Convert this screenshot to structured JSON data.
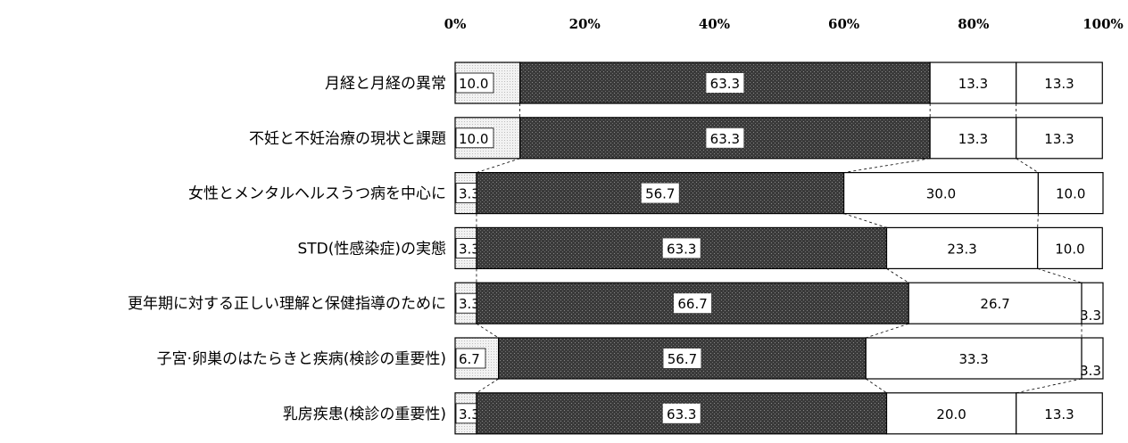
{
  "chart_data": {
    "type": "bar",
    "orientation": "horizontal",
    "stacked": true,
    "percent": true,
    "x_ticks": [
      "0%",
      "20%",
      "40%",
      "60%",
      "80%",
      "100%"
    ],
    "xlim": [
      0,
      100
    ],
    "categories": [
      "月経と月経の異常",
      "不妊と不妊治療の現状と課題",
      "女性とメンタルヘルスうつ病を中心に",
      "STD(性感染症)の実態",
      "更年期に対する正しい理解と保健指導のために",
      "子宮·卵巣のはたらきと疾病(検診の重要性)",
      "乳房疾患(検診の重要性)"
    ],
    "series": [
      {
        "values": [
          10.0,
          10.0,
          3.3,
          3.3,
          3.3,
          6.7,
          3.3
        ],
        "labels": [
          "10.0",
          "10.0",
          "3.3",
          "3.3",
          "3.3",
          "6.7",
          "3.3"
        ]
      },
      {
        "values": [
          63.3,
          63.3,
          56.7,
          63.3,
          66.7,
          56.7,
          63.3
        ],
        "labels": [
          "63.3",
          "63.3",
          "56.7",
          "63.3",
          "66.7",
          "56.7",
          "63.3"
        ]
      },
      {
        "values": [
          13.3,
          13.3,
          30.0,
          23.3,
          26.7,
          33.3,
          20.0
        ],
        "labels": [
          "13.3",
          "13.3",
          "30.0",
          "23.3",
          "26.7",
          "33.3",
          "20.0"
        ]
      },
      {
        "values": [
          13.3,
          13.3,
          10.0,
          10.0,
          3.3,
          3.3,
          13.3
        ],
        "labels": [
          "13.3",
          "13.3",
          "10.0",
          "10.0",
          "3.3",
          "3.3",
          "13.3"
        ]
      }
    ],
    "colors": [
      "#e6e6e6",
      "#3a3a3a",
      "#ffffff",
      "#ffffff"
    ],
    "grid": false,
    "legend": "none"
  }
}
